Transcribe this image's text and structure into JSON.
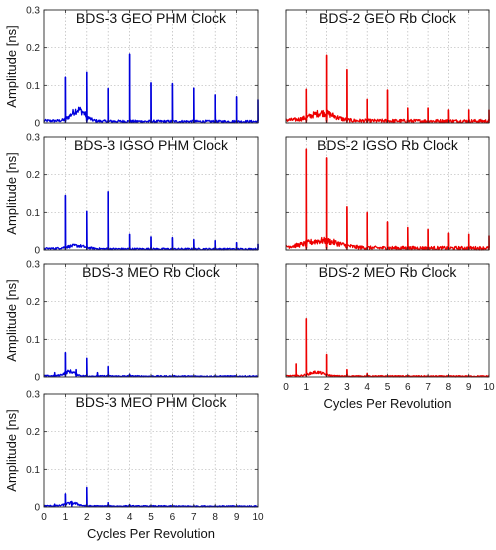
{
  "figure": {
    "ylabel": "Amplitude [ns]",
    "xlabel": "Cycles Per Revolution"
  },
  "chart_data": [
    {
      "type": "line",
      "title": "BDS-3 GEO PHM Clock",
      "color": "#0000dd",
      "xlim": [
        0,
        10
      ],
      "ylim": [
        0,
        0.3
      ],
      "xticks": [],
      "yticks": [
        "0",
        "0.1",
        "0.2",
        "0.3"
      ],
      "ylabel": "Amplitude [ns]",
      "grid": true,
      "hump": {
        "center": 1.6,
        "width": 0.45,
        "height": 0.03
      },
      "floor": 0.006,
      "peaks": [
        {
          "x": 1,
          "y": 0.122
        },
        {
          "x": 2,
          "y": 0.135
        },
        {
          "x": 3,
          "y": 0.092
        },
        {
          "x": 4,
          "y": 0.183
        },
        {
          "x": 5,
          "y": 0.107
        },
        {
          "x": 6,
          "y": 0.105
        },
        {
          "x": 7,
          "y": 0.093
        },
        {
          "x": 8,
          "y": 0.075
        },
        {
          "x": 9,
          "y": 0.07
        },
        {
          "x": 10,
          "y": 0.062
        }
      ]
    },
    {
      "type": "line",
      "title": "BDS-2 GEO Rb Clock",
      "color": "#ee0000",
      "xlim": [
        0,
        10
      ],
      "ylim": [
        0,
        0.3
      ],
      "xticks": [],
      "yticks": [],
      "grid": true,
      "hump": {
        "center": 1.8,
        "width": 0.8,
        "height": 0.02
      },
      "floor": 0.008,
      "peaks": [
        {
          "x": 1,
          "y": 0.09
        },
        {
          "x": 2,
          "y": 0.18
        },
        {
          "x": 3,
          "y": 0.142
        },
        {
          "x": 4,
          "y": 0.063
        },
        {
          "x": 5,
          "y": 0.088
        },
        {
          "x": 6,
          "y": 0.04
        },
        {
          "x": 7,
          "y": 0.04
        },
        {
          "x": 8,
          "y": 0.035
        },
        {
          "x": 9,
          "y": 0.035
        },
        {
          "x": 10,
          "y": 0.035
        }
      ]
    },
    {
      "type": "line",
      "title": "BDS-3 IGSO PHM Clock",
      "color": "#0000dd",
      "xlim": [
        0,
        10
      ],
      "ylim": [
        0,
        0.3
      ],
      "xticks": [],
      "yticks": [
        "0",
        "0.1",
        "0.2",
        "0.3"
      ],
      "ylabel": "Amplitude [ns]",
      "grid": true,
      "hump": {
        "center": 1.5,
        "width": 0.6,
        "height": 0.008
      },
      "floor": 0.004,
      "peaks": [
        {
          "x": 1,
          "y": 0.145
        },
        {
          "x": 2,
          "y": 0.103
        },
        {
          "x": 3,
          "y": 0.155
        },
        {
          "x": 4,
          "y": 0.042
        },
        {
          "x": 5,
          "y": 0.035
        },
        {
          "x": 6,
          "y": 0.033
        },
        {
          "x": 7,
          "y": 0.028
        },
        {
          "x": 8,
          "y": 0.025
        },
        {
          "x": 9,
          "y": 0.02
        },
        {
          "x": 10,
          "y": 0.016
        }
      ]
    },
    {
      "type": "line",
      "title": "BDS-2 IGSO Rb Clock",
      "color": "#ee0000",
      "xlim": [
        0,
        10
      ],
      "ylim": [
        0,
        0.3
      ],
      "xticks": [],
      "yticks": [],
      "grid": true,
      "hump": {
        "center": 1.8,
        "width": 1.1,
        "height": 0.018
      },
      "floor": 0.008,
      "peaks": [
        {
          "x": 1,
          "y": 0.268
        },
        {
          "x": 2,
          "y": 0.245
        },
        {
          "x": 3,
          "y": 0.115
        },
        {
          "x": 4,
          "y": 0.1
        },
        {
          "x": 5,
          "y": 0.075
        },
        {
          "x": 6,
          "y": 0.06
        },
        {
          "x": 7,
          "y": 0.055
        },
        {
          "x": 8,
          "y": 0.045
        },
        {
          "x": 9,
          "y": 0.042
        },
        {
          "x": 10,
          "y": 0.038
        }
      ]
    },
    {
      "type": "line",
      "title": "BDS-3 MEO Rb Clock",
      "color": "#0000dd",
      "xlim": [
        0,
        10
      ],
      "ylim": [
        0,
        0.3
      ],
      "xticks": [],
      "yticks": [
        "0",
        "0.1",
        "0.2",
        "0.3"
      ],
      "ylabel": "Amplitude [ns]",
      "grid": true,
      "hump": {
        "center": 1.2,
        "width": 0.35,
        "height": 0.012
      },
      "floor": 0.003,
      "peaks": [
        {
          "x": 0.5,
          "y": 0.012
        },
        {
          "x": 1,
          "y": 0.065
        },
        {
          "x": 1.5,
          "y": 0.02
        },
        {
          "x": 2,
          "y": 0.05
        },
        {
          "x": 2.5,
          "y": 0.012
        },
        {
          "x": 3,
          "y": 0.028
        },
        {
          "x": 4,
          "y": 0.008
        }
      ]
    },
    {
      "type": "line",
      "title": "BDS-2 MEO Rb Clock",
      "color": "#ee0000",
      "xlim": [
        0,
        10
      ],
      "ylim": [
        0,
        0.3
      ],
      "xticks": [
        "0",
        "1",
        "2",
        "3",
        "4",
        "5",
        "6",
        "7",
        "8",
        "9",
        "10"
      ],
      "yticks": [],
      "xlabel": "Cycles Per Revolution",
      "grid": true,
      "hump": {
        "center": 1.5,
        "width": 0.5,
        "height": 0.01
      },
      "floor": 0.003,
      "peaks": [
        {
          "x": 0.5,
          "y": 0.035
        },
        {
          "x": 1,
          "y": 0.155
        },
        {
          "x": 2,
          "y": 0.06
        },
        {
          "x": 3,
          "y": 0.02
        },
        {
          "x": 4,
          "y": 0.01
        }
      ]
    },
    {
      "type": "line",
      "title": "BDS-3 MEO PHM Clock",
      "color": "#0000dd",
      "xlim": [
        0,
        10
      ],
      "ylim": [
        0,
        0.3
      ],
      "xticks": [
        "0",
        "1",
        "2",
        "3",
        "4",
        "5",
        "6",
        "7",
        "8",
        "9",
        "10"
      ],
      "yticks": [
        "0",
        "0.1",
        "0.2",
        "0.3"
      ],
      "ylabel": "Amplitude [ns]",
      "xlabel": "Cycles Per Revolution",
      "grid": true,
      "hump": {
        "center": 1.3,
        "width": 0.4,
        "height": 0.008
      },
      "floor": 0.003,
      "peaks": [
        {
          "x": 0.5,
          "y": 0.008
        },
        {
          "x": 1,
          "y": 0.035
        },
        {
          "x": 1.3,
          "y": 0.015
        },
        {
          "x": 2,
          "y": 0.052
        },
        {
          "x": 3,
          "y": 0.012
        },
        {
          "x": 4,
          "y": 0.006
        }
      ]
    }
  ]
}
